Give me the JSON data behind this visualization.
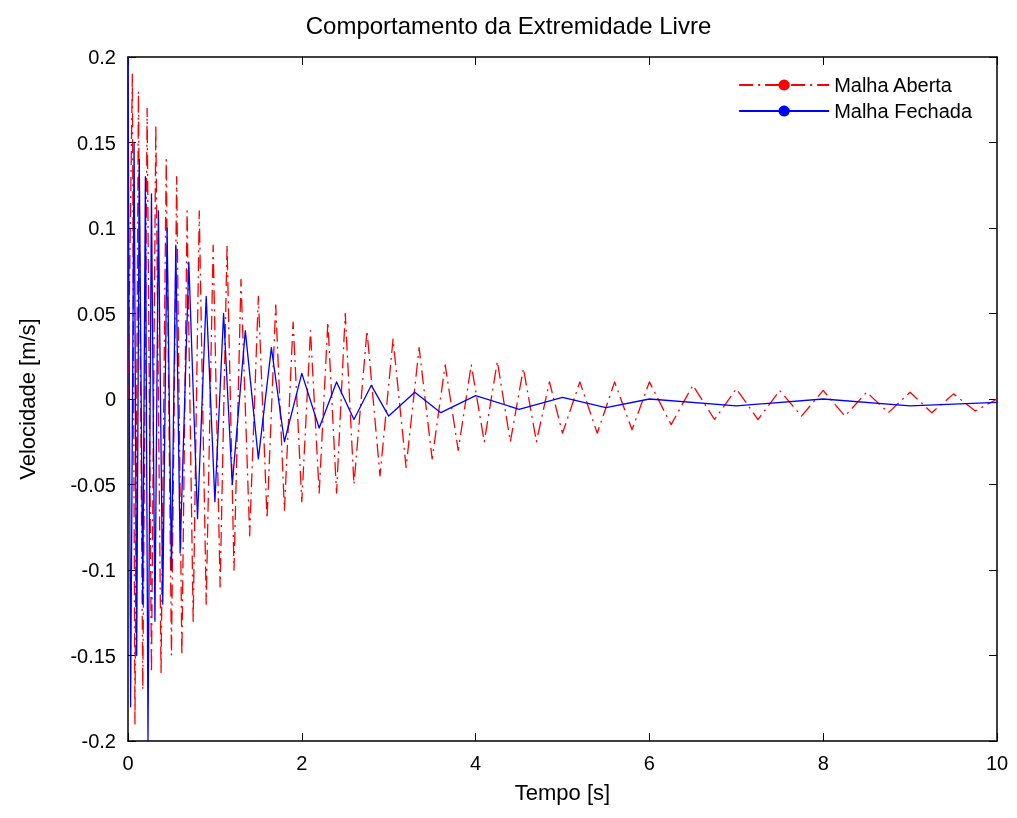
{
  "chart_data": {
    "type": "line",
    "title": "Comportamento da Extremidade Livre",
    "xlabel": "Tempo [s]",
    "ylabel": "Velocidade [m/s]",
    "xlim": [
      0,
      10
    ],
    "xticks": [
      0,
      2,
      4,
      6,
      8,
      10
    ],
    "ylim": [
      -0.2,
      0.2
    ],
    "yticks": [
      -0.2,
      -0.15,
      -0.1,
      -0.05,
      0,
      0.05,
      0.1,
      0.15,
      0.2
    ],
    "grid": false,
    "legend": "top right",
    "marker": "none",
    "series": [
      {
        "name": "Malha Aberta",
        "color": "#ff0000",
        "line_style": "dashed",
        "x": [
          0,
          0.05,
          0.08,
          0.12,
          0.17,
          0.22,
          0.27,
          0.32,
          0.38,
          0.44,
          0.5,
          0.56,
          0.62,
          0.68,
          0.75,
          0.82,
          0.9,
          0.98,
          1.06,
          1.14,
          1.22,
          1.3,
          1.4,
          1.5,
          1.6,
          1.7,
          1.8,
          1.9,
          2.0,
          2.1,
          2.2,
          2.3,
          2.4,
          2.5,
          2.6,
          2.75,
          2.9,
          3.05,
          3.2,
          3.35,
          3.5,
          3.65,
          3.8,
          3.95,
          4.1,
          4.25,
          4.4,
          4.55,
          4.7,
          4.85,
          5.0,
          5.2,
          5.4,
          5.6,
          5.8,
          6.0,
          6.25,
          6.5,
          6.75,
          7.0,
          7.25,
          7.5,
          7.75,
          8.0,
          8.25,
          8.5,
          8.75,
          9.0,
          9.25,
          9.5,
          9.75,
          10
        ],
        "values": [
          0,
          0.19,
          -0.19,
          0.18,
          -0.17,
          0.17,
          -0.16,
          0.16,
          -0.16,
          0.14,
          -0.15,
          0.13,
          -0.15,
          0.11,
          -0.13,
          0.11,
          -0.12,
          0.09,
          -0.11,
          0.09,
          -0.1,
          0.07,
          -0.08,
          0.06,
          -0.07,
          0.055,
          -0.065,
          0.045,
          -0.06,
          0.04,
          -0.055,
          0.045,
          -0.055,
          0.05,
          -0.05,
          0.04,
          -0.045,
          0.035,
          -0.04,
          0.03,
          -0.035,
          0.02,
          -0.03,
          0.02,
          -0.025,
          0.022,
          -0.025,
          0.018,
          -0.025,
          0.01,
          -0.02,
          0.01,
          -0.02,
          0.01,
          -0.018,
          0.01,
          -0.015,
          0.008,
          -0.012,
          0.006,
          -0.012,
          0.005,
          -0.01,
          0.005,
          -0.01,
          0.004,
          -0.008,
          0.004,
          -0.008,
          0.003,
          -0.007,
          0
        ]
      },
      {
        "name": "Malha Fechada",
        "color": "#0000ff",
        "line_style": "solid",
        "x": [
          0,
          0.03,
          0.07,
          0.1,
          0.13,
          0.17,
          0.2,
          0.23,
          0.27,
          0.31,
          0.35,
          0.4,
          0.45,
          0.5,
          0.55,
          0.6,
          0.7,
          0.8,
          0.9,
          1.0,
          1.1,
          1.2,
          1.35,
          1.5,
          1.65,
          1.8,
          2.0,
          2.2,
          2.4,
          2.6,
          2.8,
          3.0,
          3.3,
          3.6,
          4.0,
          4.5,
          5.0,
          5.5,
          6.0,
          7.0,
          8.0,
          9.0,
          10
        ],
        "values": [
          0.2,
          -0.18,
          0.15,
          -0.15,
          0.14,
          -0.12,
          0.13,
          -0.2,
          0.12,
          -0.13,
          0.11,
          -0.12,
          0.1,
          -0.1,
          0.09,
          -0.09,
          0.08,
          -0.07,
          0.06,
          -0.06,
          0.05,
          -0.05,
          0.04,
          -0.035,
          0.03,
          -0.025,
          0.015,
          -0.017,
          0.01,
          -0.012,
          0.008,
          -0.01,
          0.004,
          -0.008,
          0.002,
          -0.006,
          0.001,
          -0.005,
          0,
          -0.004,
          0,
          -0.004,
          -0.002
        ]
      }
    ]
  }
}
